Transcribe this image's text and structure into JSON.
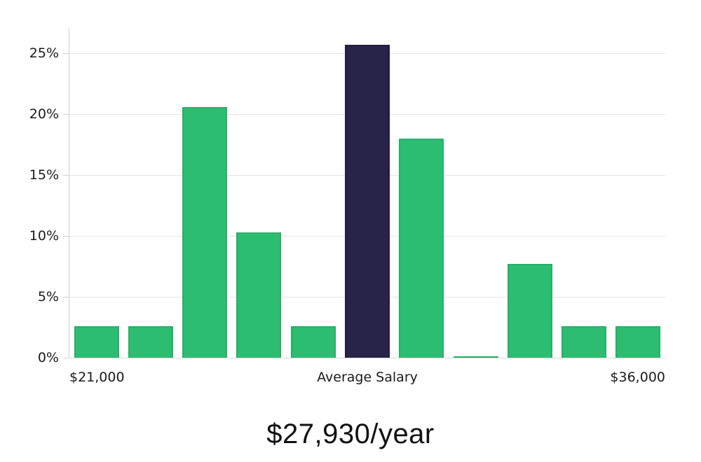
{
  "page": {
    "background": "#ffffff"
  },
  "chart_data": {
    "type": "bar",
    "title": "$27,930/year",
    "x_tick_labels": {
      "left": "$21,000",
      "center": "Average Salary",
      "right": "$36,000"
    },
    "y_ticks": [
      {
        "label": "0%",
        "value": 0
      },
      {
        "label": "5%",
        "value": 5
      },
      {
        "label": "10%",
        "value": 10
      },
      {
        "label": "15%",
        "value": 15
      },
      {
        "label": "20%",
        "value": 20
      },
      {
        "label": "25%",
        "value": 25
      }
    ],
    "ylim": [
      0,
      27.1
    ],
    "grid": true,
    "legend_position": "none",
    "categories": [
      "bin-1",
      "bin-2",
      "bin-3",
      "bin-4",
      "bin-5",
      "bin-6",
      "bin-7",
      "bin-8",
      "bin-9",
      "bin-10",
      "bin-11"
    ],
    "series": [
      {
        "name": "salary-distribution-percent",
        "values": [
          2.6,
          2.6,
          20.6,
          10.3,
          2.6,
          25.7,
          18.0,
          0.1,
          7.7,
          2.6,
          2.6
        ]
      }
    ],
    "highlight_index": 5,
    "colors": {
      "bar_fill": "#2dbd71",
      "bar_edge": "#28af68",
      "highlight_fill": "#282349",
      "highlight_edge": "#211d3d",
      "grid_line": "#e4e4e4",
      "axis_line": "#cfcfcf",
      "tick_text": "#1a1a1a",
      "title_text": "#111111"
    }
  }
}
